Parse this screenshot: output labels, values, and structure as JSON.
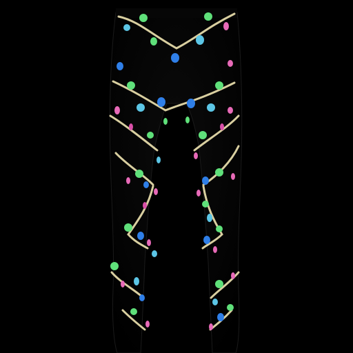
{
  "image": {
    "subject": "leggings",
    "pattern": "string-lights",
    "colors": {
      "background": "#000000",
      "fabric": "#050505",
      "fabric_edge": "#1a1a1a",
      "cord": "#d9cfa0",
      "bulb_green": "#5fe07a",
      "bulb_blue": "#2f7fe8",
      "bulb_light_blue": "#5cc6e6",
      "bulb_pink": "#e86ab8",
      "bulb_magenta": "#d94fa8"
    }
  }
}
